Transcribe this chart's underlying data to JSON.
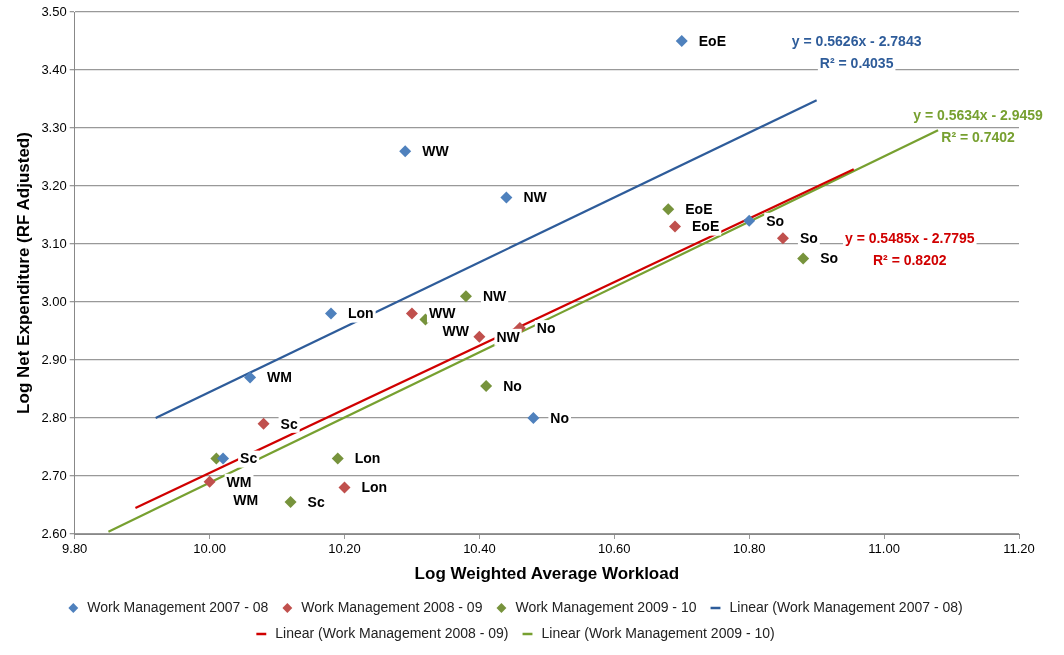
{
  "chart_data": {
    "type": "scatter",
    "xlabel": "Log Weighted Average Workload",
    "ylabel": "Log Net Expenditure (RF Adjusted)",
    "xlim": [
      9.8,
      11.2
    ],
    "xticks": [
      {
        "value": 9.8,
        "label": "9.80"
      },
      {
        "value": 10,
        "label": "10.00"
      },
      {
        "value": 10.2,
        "label": "10.20"
      },
      {
        "value": 10.4,
        "label": "10.40"
      },
      {
        "value": 10.6,
        "label": "10.60"
      },
      {
        "value": 10.8,
        "label": "10.80"
      },
      {
        "value": 11,
        "label": "11.00"
      },
      {
        "value": 11.2,
        "label": "11.20"
      }
    ],
    "ylim": [
      2.6,
      3.5
    ],
    "yticks": [
      {
        "value": 2.6,
        "label": "2.60"
      },
      {
        "value": 2.7,
        "label": "2.70"
      },
      {
        "value": 2.8,
        "label": "2.80"
      },
      {
        "value": 2.9,
        "label": "2.90"
      },
      {
        "value": 3,
        "label": "3.00"
      },
      {
        "value": 3.1,
        "label": "3.10"
      },
      {
        "value": 3.2,
        "label": "3.20"
      },
      {
        "value": 3.3,
        "label": "3.30"
      },
      {
        "value": 3.4,
        "label": "3.40"
      },
      {
        "value": 3.5,
        "label": "3.50"
      }
    ],
    "grid": "y",
    "legend": "bottom",
    "marker": "diamond",
    "series": [
      {
        "name": "Work Management 2007 - 08",
        "color": "#4f81bd",
        "x": [
          10.7,
          10.29,
          10.44,
          10.8,
          10.18,
          10.06,
          10.48,
          10.02
        ],
        "values": [
          3.45,
          3.26,
          3.18,
          3.14,
          2.98,
          2.87,
          2.8,
          2.73
        ]
      },
      {
        "name": "Work Management 2008 - 09",
        "color": "#c0504d",
        "x": [
          10.69,
          10.85,
          10.3,
          10.4,
          10.46,
          10.08,
          10.2,
          10
        ],
        "values": [
          3.13,
          3.11,
          2.98,
          2.94,
          2.955,
          2.79,
          2.68,
          2.69
        ]
      },
      {
        "name": "Work Management 2009 - 10",
        "color": "#77933c",
        "x": [
          10.68,
          10.88,
          10.38,
          10.32,
          10.41,
          10.01,
          10.19,
          10.12
        ],
        "values": [
          3.16,
          3.075,
          3.01,
          2.97,
          2.855,
          2.73,
          2.73,
          2.655
        ]
      },
      {
        "name": "Linear (Work Management 2007 - 08)",
        "type": "line",
        "marker": "none",
        "color": "#2e5c9a",
        "x": [
          9.92,
          10.9
        ],
        "values": [
          2.8,
          3.348
        ]
      },
      {
        "name": "Linear (Work Management 2008 - 09)",
        "type": "line",
        "marker": "none",
        "color": "#d00000",
        "x": [
          9.89,
          10.955
        ],
        "values": [
          2.645,
          3.229
        ]
      },
      {
        "name": "Linear (Work Management 2009 - 10)",
        "type": "line",
        "marker": "none",
        "color": "#77a030",
        "x": [
          9.85,
          11.08
        ],
        "values": [
          2.604,
          3.296
        ]
      }
    ],
    "annotations": [
      {
        "text": "EoE",
        "x": 10.7,
        "y": 3.45
      },
      {
        "text": "WW",
        "x": 10.29,
        "y": 3.26
      },
      {
        "text": "NW",
        "x": 10.44,
        "y": 3.18
      },
      {
        "text": "So",
        "x": 10.8,
        "y": 3.14
      },
      {
        "text": "Lon",
        "x": 10.18,
        "y": 2.98
      },
      {
        "text": "WM",
        "x": 10.06,
        "y": 2.87
      },
      {
        "text": "No",
        "x": 10.48,
        "y": 2.8
      },
      {
        "text": "Sc",
        "x": 10.02,
        "y": 2.73
      },
      {
        "text": "EoE",
        "x": 10.69,
        "y": 3.13
      },
      {
        "text": "So",
        "x": 10.85,
        "y": 3.11
      },
      {
        "text": "WW",
        "x": 10.3,
        "y": 2.98
      },
      {
        "text": "NW",
        "x": 10.4,
        "y": 2.94
      },
      {
        "text": "No",
        "x": 10.46,
        "y": 2.955
      },
      {
        "text": "Sc",
        "x": 10.08,
        "y": 2.79
      },
      {
        "text": "Lon",
        "x": 10.2,
        "y": 2.68
      },
      {
        "text": "WM",
        "x": 10,
        "y": 2.69
      },
      {
        "text": "EoE",
        "x": 10.68,
        "y": 3.16
      },
      {
        "text": "So",
        "x": 10.88,
        "y": 3.075
      },
      {
        "text": "NW",
        "x": 10.38,
        "y": 3.01
      },
      {
        "text": "WW",
        "x": 10.32,
        "y": 2.97
      },
      {
        "text": "No",
        "x": 10.41,
        "y": 2.855
      },
      {
        "text": "WM",
        "x": 10.01,
        "y": 2.73
      },
      {
        "text": "Lon",
        "x": 10.19,
        "y": 2.73
      },
      {
        "text": "Sc",
        "x": 10.12,
        "y": 2.655
      },
      "y = 0.5626x - 2.7843\nR² = 0.4035",
      "y = 0.5485x - 2.7795\nR² = 0.8202",
      "y = 0.5634x - 2.9459\nR² = 0.7402"
    ]
  }
}
